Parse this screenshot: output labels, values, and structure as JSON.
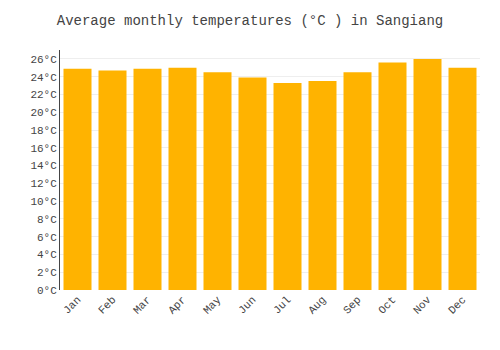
{
  "chart_data": {
    "type": "bar",
    "title": "Average monthly temperatures (°C ) in Sangiang",
    "categories": [
      "Jan",
      "Feb",
      "Mar",
      "Apr",
      "May",
      "Jun",
      "Jul",
      "Aug",
      "Sep",
      "Oct",
      "Nov",
      "Dec"
    ],
    "values": [
      24.9,
      24.7,
      24.9,
      25.0,
      24.5,
      23.9,
      23.3,
      23.5,
      24.5,
      25.6,
      26.0,
      25.0
    ],
    "color": "#FFB300",
    "ylim": [
      0,
      27
    ],
    "yticks": [
      {
        "value": 0,
        "label": "0°C"
      },
      {
        "value": 2,
        "label": "2°C"
      },
      {
        "value": 4,
        "label": "4°C"
      },
      {
        "value": 6,
        "label": "6°C"
      },
      {
        "value": 8,
        "label": "8°C"
      },
      {
        "value": 10,
        "label": "10°C"
      },
      {
        "value": 12,
        "label": "12°C"
      },
      {
        "value": 14,
        "label": "14°C"
      },
      {
        "value": 16,
        "label": "16°C"
      },
      {
        "value": 18,
        "label": "18°C"
      },
      {
        "value": 20,
        "label": "20°C"
      },
      {
        "value": 22,
        "label": "22°C"
      },
      {
        "value": 24,
        "label": "24°C"
      },
      {
        "value": 26,
        "label": "26°C"
      }
    ],
    "grid": true
  }
}
